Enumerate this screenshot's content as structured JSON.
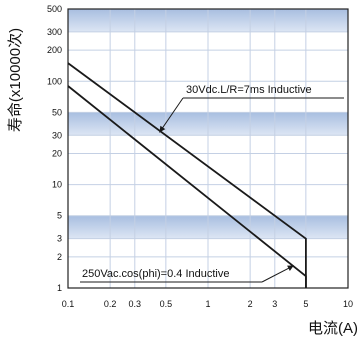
{
  "chart_data": {
    "type": "line",
    "xlabel": "电流(A)",
    "ylabel": "寿命(x10000次)",
    "x_scale": "log",
    "y_scale": "log",
    "xlim": [
      0.1,
      10
    ],
    "ylim": [
      1,
      500
    ],
    "x_ticks": [
      {
        "value": 0.1,
        "label": "0.1"
      },
      {
        "value": 0.2,
        "label": "0.2"
      },
      {
        "value": 0.3,
        "label": "0.3"
      },
      {
        "value": 0.5,
        "label": "0.5"
      },
      {
        "value": 1,
        "label": "1"
      },
      {
        "value": 2,
        "label": "2"
      },
      {
        "value": 3,
        "label": "3"
      },
      {
        "value": 5,
        "label": "5"
      },
      {
        "value": 10,
        "label": "10"
      }
    ],
    "y_ticks": [
      {
        "value": 1,
        "label": "1"
      },
      {
        "value": 2,
        "label": "2"
      },
      {
        "value": 3,
        "label": "3"
      },
      {
        "value": 5,
        "label": "5"
      },
      {
        "value": 10,
        "label": "10"
      },
      {
        "value": 20,
        "label": "20"
      },
      {
        "value": 30,
        "label": "30"
      },
      {
        "value": 50,
        "label": "50"
      },
      {
        "value": 100,
        "label": "100"
      },
      {
        "value": 200,
        "label": "200"
      },
      {
        "value": 300,
        "label": "300"
      },
      {
        "value": 500,
        "label": "500"
      }
    ],
    "x_gridlines": [
      0.1,
      0.2,
      0.3,
      0.5,
      1,
      2,
      3,
      5,
      10
    ],
    "y_gridlines": [
      1,
      2,
      3,
      5,
      10,
      20,
      30,
      50,
      100,
      200,
      300,
      500
    ],
    "shaded_bands": [
      {
        "y_from": 3,
        "y_to": 5
      },
      {
        "y_from": 30,
        "y_to": 50
      },
      {
        "y_from": 300,
        "y_to": 500
      }
    ],
    "grid": true,
    "series": [
      {
        "name": "30Vdc.L/R=7ms Inductive",
        "x": [
          0.1,
          5,
          5
        ],
        "y": [
          150,
          3,
          1
        ]
      },
      {
        "name": "250Vac.cos(phi)=0.4 Inductive",
        "x": [
          0.1,
          5,
          5
        ],
        "y": [
          90,
          1.3,
          1
        ]
      }
    ],
    "annotations": [
      {
        "text": "30Vdc.L/R=7ms Inductive",
        "points_to": {
          "x": 0.45,
          "y": 32
        }
      },
      {
        "text": "250Vac.cos(phi)=0.4 Inductive",
        "points_to": {
          "x": 4.1,
          "y": 1.65
        }
      }
    ]
  },
  "colors": {
    "band_fill": "#a8bee0",
    "band_light": "#dde6f4",
    "plot_bg": "#ffffff",
    "grid": "#ffffff",
    "frame": "#222222",
    "line": "#1a1a1a"
  }
}
